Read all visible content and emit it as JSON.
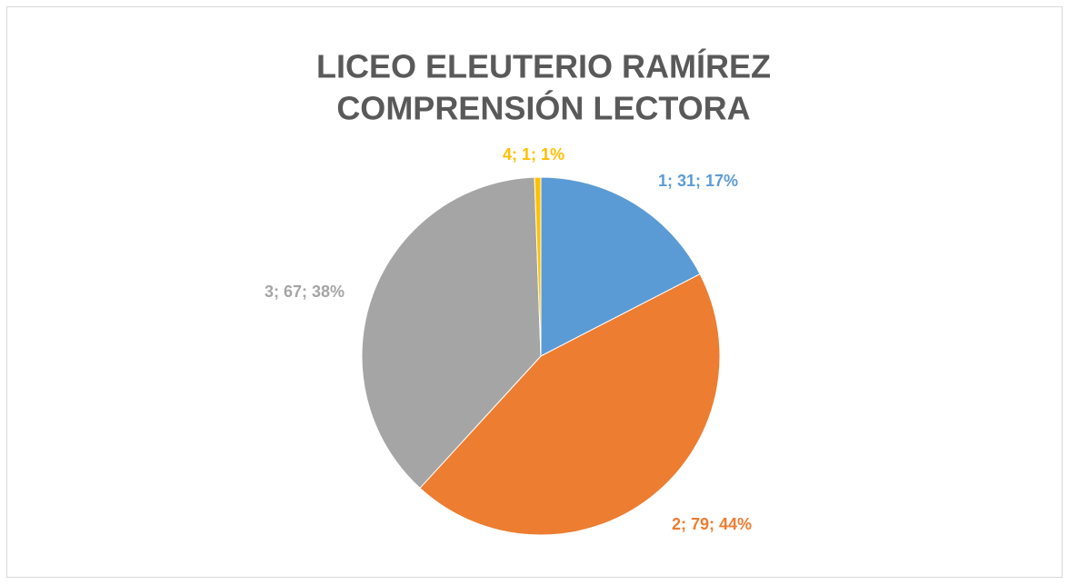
{
  "chart_data": {
    "type": "pie",
    "title": [
      "LICEO ELEUTERIO RAMÍREZ",
      "COMPRENSIÓN LECTORA"
    ],
    "categories": [
      "1",
      "2",
      "3",
      "4"
    ],
    "values": [
      31,
      79,
      67,
      1
    ],
    "value_labels": [
      "1; 31; 17%",
      "2; 79; 44%",
      "3; 67; 38%",
      "4; 1; 1%"
    ],
    "colors": [
      "#5b9bd5",
      "#ed7d31",
      "#a5a5a5",
      "#ffc000"
    ]
  }
}
